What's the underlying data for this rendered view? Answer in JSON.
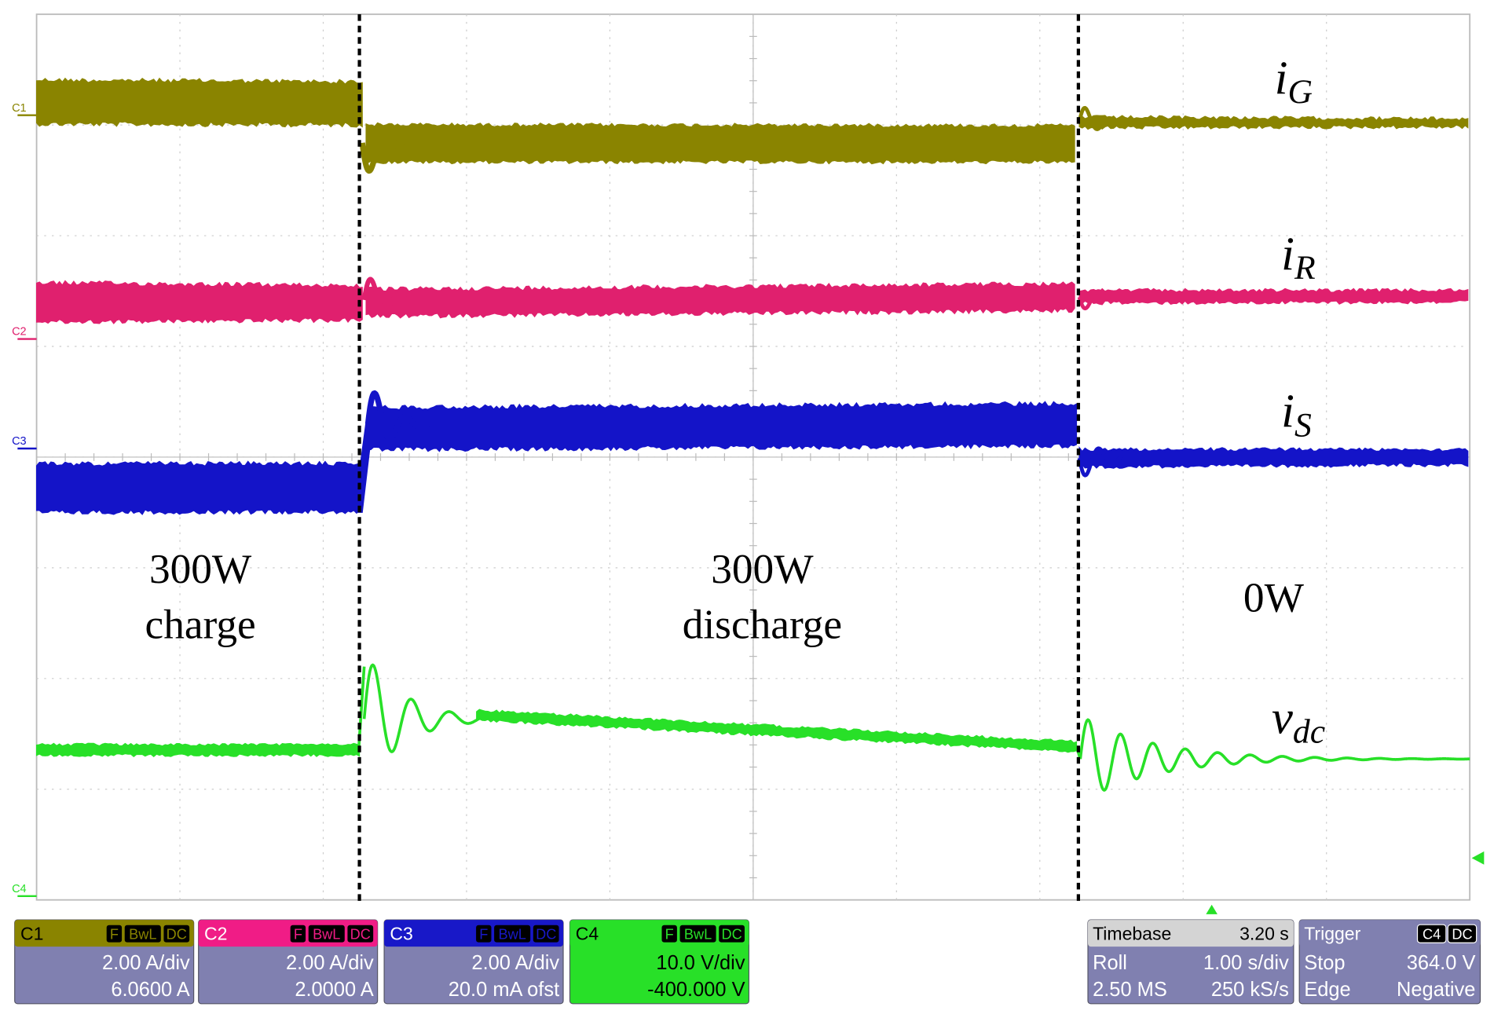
{
  "trace_labels": [
    {
      "symbol": "i",
      "subscript": "G"
    },
    {
      "symbol": "i",
      "subscript": "R"
    },
    {
      "symbol": "i",
      "subscript": "S"
    },
    {
      "symbol": "v",
      "subscript": "dc"
    }
  ],
  "channel_markers": [
    "C1",
    "C2",
    "C3",
    "C4"
  ],
  "annotations": [
    {
      "lines": [
        "300W",
        "charge"
      ]
    },
    {
      "lines": [
        "300W",
        "discharge"
      ]
    },
    {
      "lines": [
        "0W"
      ]
    }
  ],
  "channels": [
    {
      "name": "C1",
      "badges": [
        "F",
        "BwL",
        "DC"
      ],
      "scale": "2.00 A/div",
      "offset": "6.0600 A"
    },
    {
      "name": "C2",
      "badges": [
        "F",
        "BwL",
        "DC"
      ],
      "scale": "2.00 A/div",
      "offset": "2.0000 A"
    },
    {
      "name": "C3",
      "badges": [
        "F",
        "BwL",
        "DC"
      ],
      "scale": "2.00 A/div",
      "offset": "20.0 mA ofst"
    },
    {
      "name": "C4",
      "badges": [
        "F",
        "BwL",
        "DC"
      ],
      "scale": "10.0 V/div",
      "offset": "-400.000 V"
    }
  ],
  "timebase": {
    "title": "Timebase",
    "value": "3.20 s",
    "rows": [
      [
        "Roll",
        "1.00 s/div"
      ],
      [
        "2.50 MS",
        "250 kS/s"
      ]
    ]
  },
  "trigger": {
    "title": "Trigger",
    "badges": [
      "C4",
      "DC"
    ],
    "rows": [
      [
        "Stop",
        "364.0 V"
      ],
      [
        "Edge",
        "Negative"
      ]
    ]
  }
}
